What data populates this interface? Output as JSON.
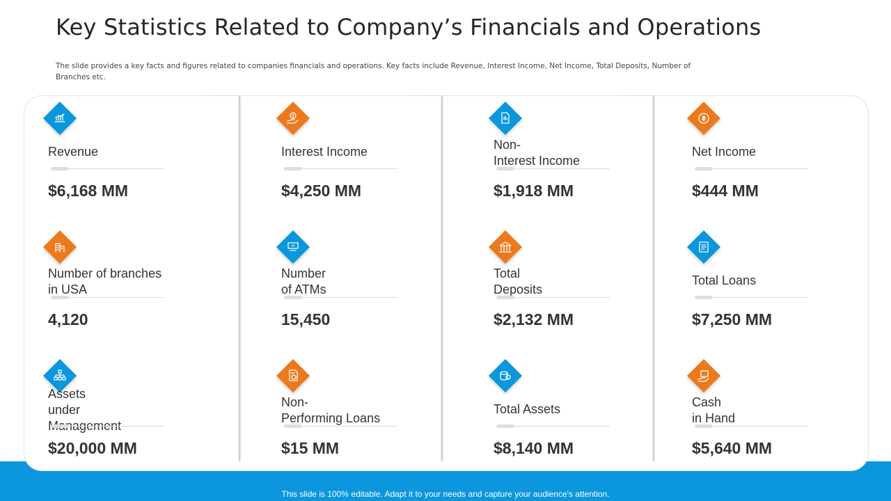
{
  "title": "Key Statistics Related to Company’s Financials and Operations",
  "subtitle": "The slide provides a key facts and figures related to companies financials and operations. Key facts include Revenue,  Interest Income, Net  Income, Total Deposits, Number of Branches etc.",
  "footer": "This slide is 100% editable. Adapt it to your needs and capture your audience's attention.",
  "colors": {
    "blue": "#0b96dd",
    "orange": "#ec7a1d"
  },
  "stats": [
    {
      "label": "Revenue",
      "value": "$6,168 MM",
      "icon": "revenue-chart-icon",
      "color": "blue"
    },
    {
      "label": "Interest Income",
      "value": "$4,250 MM",
      "icon": "dollar-hand-icon",
      "color": "orange"
    },
    {
      "label": "Non-\nInterest Income",
      "value": "$1,918 MM",
      "icon": "document-dollar-icon",
      "color": "blue"
    },
    {
      "label": "Net Income",
      "value": "$444 MM",
      "icon": "dollar-cycle-icon",
      "color": "orange"
    },
    {
      "label": "Number of branches\nin USA",
      "value": "4,120",
      "icon": "branches-icon",
      "color": "orange"
    },
    {
      "label": "Number\nof ATMs",
      "value": "15,450",
      "icon": "atm-icon",
      "color": "blue"
    },
    {
      "label": "Total\nDeposits",
      "value": "$2,132 MM",
      "icon": "bank-icon",
      "color": "orange"
    },
    {
      "label": "Total Loans",
      "value": "$7,250 MM",
      "icon": "loan-icon",
      "color": "blue"
    },
    {
      "label": "Assets\nunder\nManagement",
      "value": "$20,000 MM",
      "icon": "org-chart-icon",
      "color": "blue"
    },
    {
      "label": "Non-\nPerforming Loans",
      "value": "$15 MM",
      "icon": "document-stamp-icon",
      "color": "orange"
    },
    {
      "label": "Total Assets",
      "value": "$8,140 MM",
      "icon": "coins-icon",
      "color": "blue"
    },
    {
      "label": "Cash\nin Hand",
      "value": "$5,640 MM",
      "icon": "cash-hand-icon",
      "color": "orange"
    }
  ]
}
